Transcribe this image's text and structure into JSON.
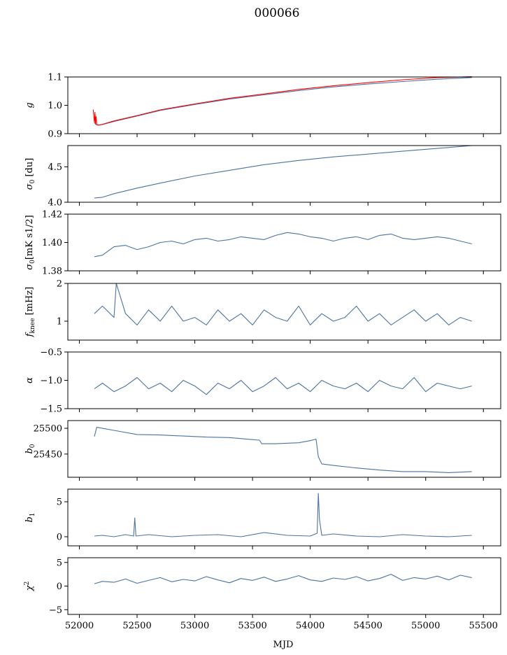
{
  "title": "000066",
  "colors": {
    "series": "#4c72a0",
    "overlay": "#ff0000"
  },
  "chart_data": {
    "type": "line",
    "title": "000066",
    "xlabel": "MJD",
    "xlim": [
      51900,
      55650
    ],
    "xticks": [
      52000,
      52500,
      53000,
      53500,
      54000,
      54500,
      55000,
      55500
    ],
    "xtick_labels": [
      "52000",
      "52500",
      "53000",
      "53500",
      "54000",
      "54500",
      "55000",
      "55500"
    ],
    "panels": [
      {
        "key": "g",
        "ylabel": "g",
        "ylim": [
          0.9,
          1.1
        ],
        "yticks": [
          0.9,
          1.0,
          1.1
        ],
        "ytick_labels": [
          "0.9",
          "1.0",
          "1.1"
        ],
        "series": [
          {
            "x": [
              52130,
              52140,
              52160,
              52200,
              52300,
              52500,
              52700,
              53000,
              53300,
              53600,
              53900,
              54200,
              54500,
              54800,
              55100,
              55400
            ],
            "y": [
              0.94,
              0.933,
              0.93,
              0.932,
              0.943,
              0.962,
              0.982,
              1.003,
              1.022,
              1.037,
              1.052,
              1.065,
              1.075,
              1.084,
              1.092,
              1.098
            ]
          },
          {
            "x": [
              52120,
              52130,
              52135,
              52140,
              52145,
              52150,
              52170,
              52200,
              52300,
              52500,
              52700,
              53000,
              53300,
              53600,
              53900,
              54200,
              54500,
              54800,
              55100,
              55400
            ],
            "y": [
              0.985,
              0.94,
              0.975,
              0.935,
              0.96,
              0.932,
              0.93,
              0.933,
              0.945,
              0.964,
              0.984,
              1.005,
              1.025,
              1.04,
              1.056,
              1.069,
              1.08,
              1.09,
              1.098,
              1.101
            ]
          }
        ]
      },
      {
        "key": "sigma0",
        "ylabel": "σ0 [du]",
        "ylim": [
          4.0,
          4.8
        ],
        "yticks": [
          4.0,
          4.5
        ],
        "ytick_labels": [
          "4.0",
          "4.5"
        ],
        "series": [
          {
            "x": [
              52130,
              52200,
              52300,
              52500,
              52700,
              53000,
              53300,
              53600,
              53900,
              54200,
              54500,
              54800,
              55100,
              55400
            ],
            "y": [
              4.06,
              4.07,
              4.12,
              4.2,
              4.27,
              4.37,
              4.45,
              4.53,
              4.59,
              4.64,
              4.68,
              4.72,
              4.76,
              4.8
            ]
          }
        ]
      },
      {
        "key": "sigma0_mk",
        "ylabel": "σ0[mK s1/2]",
        "ylim": [
          1.38,
          1.42
        ],
        "yticks": [
          1.38,
          1.4,
          1.42
        ],
        "ytick_labels": [
          "1.38",
          "1.40",
          "1.42"
        ],
        "series": [
          {
            "x": [
              52130,
              52200,
              52300,
              52400,
              52500,
              52600,
              52700,
              52800,
              52900,
              53000,
              53100,
              53200,
              53300,
              53400,
              53500,
              53600,
              53700,
              53800,
              53900,
              54000,
              54100,
              54200,
              54300,
              54400,
              54500,
              54600,
              54700,
              54800,
              54900,
              55000,
              55100,
              55200,
              55300,
              55400
            ],
            "y": [
              1.39,
              1.391,
              1.397,
              1.398,
              1.395,
              1.397,
              1.4,
              1.401,
              1.399,
              1.402,
              1.403,
              1.401,
              1.402,
              1.404,
              1.403,
              1.402,
              1.405,
              1.407,
              1.406,
              1.404,
              1.403,
              1.401,
              1.403,
              1.404,
              1.402,
              1.405,
              1.406,
              1.403,
              1.402,
              1.403,
              1.404,
              1.403,
              1.401,
              1.399
            ]
          }
        ]
      },
      {
        "key": "fknee",
        "ylabel": "fknee [mHz]",
        "ylim": [
          0.5,
          2.0
        ],
        "yticks": [
          1,
          2
        ],
        "ytick_labels": [
          "1",
          "2"
        ],
        "series": [
          {
            "x": [
              52130,
              52200,
              52300,
              52320,
              52400,
              52500,
              52600,
              52700,
              52800,
              52900,
              53000,
              53100,
              53200,
              53300,
              53400,
              53500,
              53600,
              53700,
              53800,
              53900,
              54000,
              54100,
              54200,
              54300,
              54400,
              54500,
              54600,
              54700,
              54800,
              54900,
              55000,
              55100,
              55200,
              55300,
              55400
            ],
            "y": [
              1.2,
              1.4,
              1.1,
              2.0,
              1.2,
              0.9,
              1.3,
              1.0,
              1.4,
              1.0,
              1.1,
              0.9,
              1.3,
              1.0,
              1.2,
              0.9,
              1.3,
              1.1,
              1.0,
              1.4,
              0.9,
              1.2,
              1.0,
              1.1,
              1.4,
              1.0,
              1.2,
              0.9,
              1.1,
              1.3,
              1.0,
              1.2,
              0.9,
              1.1,
              1.0
            ]
          }
        ]
      },
      {
        "key": "alpha",
        "ylabel": "α",
        "ylim": [
          -1.5,
          -0.5
        ],
        "yticks": [
          -1.5,
          -1.0,
          -0.5
        ],
        "ytick_labels": [
          "−1.5",
          "−1.0",
          "−0.5"
        ],
        "series": [
          {
            "x": [
              52130,
              52200,
              52300,
              52400,
              52500,
              52600,
              52700,
              52800,
              52900,
              53000,
              53100,
              53200,
              53300,
              53400,
              53500,
              53600,
              53700,
              53800,
              53900,
              54000,
              54100,
              54200,
              54300,
              54400,
              54500,
              54600,
              54700,
              54800,
              54900,
              55000,
              55100,
              55200,
              55300,
              55400
            ],
            "y": [
              -1.15,
              -1.05,
              -1.2,
              -1.1,
              -0.95,
              -1.15,
              -1.05,
              -1.2,
              -1.0,
              -1.1,
              -1.25,
              -1.05,
              -1.15,
              -1.0,
              -1.2,
              -1.1,
              -0.95,
              -1.15,
              -1.05,
              -1.2,
              -1.0,
              -1.1,
              -1.15,
              -1.05,
              -1.2,
              -1.0,
              -1.1,
              -1.15,
              -0.95,
              -1.2,
              -1.05,
              -1.1,
              -1.15,
              -1.1
            ]
          }
        ]
      },
      {
        "key": "b0",
        "ylabel": "b0",
        "ylim": [
          25405,
          25515
        ],
        "yticks": [
          25450,
          25500
        ],
        "ytick_labels": [
          "25450",
          "25500"
        ],
        "series": [
          {
            "x": [
              52130,
              52150,
              52300,
              52500,
              52700,
              52900,
              53100,
              53300,
              53500,
              53560,
              53580,
              53700,
              53900,
              54000,
              54050,
              54070,
              54100,
              54200,
              54400,
              54600,
              54800,
              55000,
              55200,
              55400
            ],
            "y": [
              25484,
              25502,
              25496,
              25488,
              25487,
              25485,
              25483,
              25482,
              25478,
              25477,
              25470,
              25470,
              25472,
              25476,
              25479,
              25445,
              25431,
              25428,
              25423,
              25419,
              25416,
              25416,
              25414,
              25416
            ]
          }
        ]
      },
      {
        "key": "b1",
        "ylabel": "b1",
        "ylim": [
          -1.3,
          6.8
        ],
        "yticks": [
          0,
          5
        ],
        "ytick_labels": [
          "0",
          "5"
        ],
        "series": [
          {
            "x": [
              52130,
              52200,
              52300,
              52400,
              52470,
              52480,
              52490,
              52600,
              52800,
              53000,
              53200,
              53400,
              53600,
              53800,
              54000,
              54060,
              54070,
              54080,
              54100,
              54200,
              54400,
              54600,
              54800,
              55000,
              55200,
              55400
            ],
            "y": [
              0.1,
              0.2,
              0.0,
              0.3,
              0.1,
              2.7,
              0.1,
              0.3,
              0.0,
              0.2,
              0.3,
              0.0,
              0.6,
              0.2,
              0.1,
              0.5,
              6.2,
              2.5,
              0.2,
              0.4,
              0.1,
              0.0,
              0.3,
              0.1,
              0.0,
              0.2
            ]
          }
        ]
      },
      {
        "key": "chi2",
        "ylabel": "χ2",
        "ylim": [
          -6,
          6
        ],
        "yticks": [
          -5,
          0,
          5
        ],
        "ytick_labels": [
          "−5",
          "0",
          "5"
        ],
        "series": [
          {
            "x": [
              52130,
              52200,
              52300,
              52400,
              52500,
              52600,
              52700,
              52800,
              52900,
              53000,
              53100,
              53200,
              53300,
              53400,
              53500,
              53600,
              53700,
              53800,
              53900,
              54000,
              54100,
              54200,
              54300,
              54400,
              54500,
              54600,
              54700,
              54800,
              54900,
              55000,
              55100,
              55200,
              55300,
              55400
            ],
            "y": [
              0.5,
              1.0,
              0.8,
              1.5,
              0.6,
              1.2,
              1.8,
              0.9,
              1.4,
              1.1,
              2.0,
              1.3,
              0.7,
              1.6,
              1.2,
              1.9,
              1.0,
              1.5,
              2.2,
              1.3,
              1.0,
              1.7,
              1.4,
              2.0,
              1.1,
              1.6,
              2.5,
              1.2,
              1.8,
              1.5,
              2.1,
              1.3,
              2.3,
              1.8
            ]
          }
        ]
      }
    ]
  }
}
